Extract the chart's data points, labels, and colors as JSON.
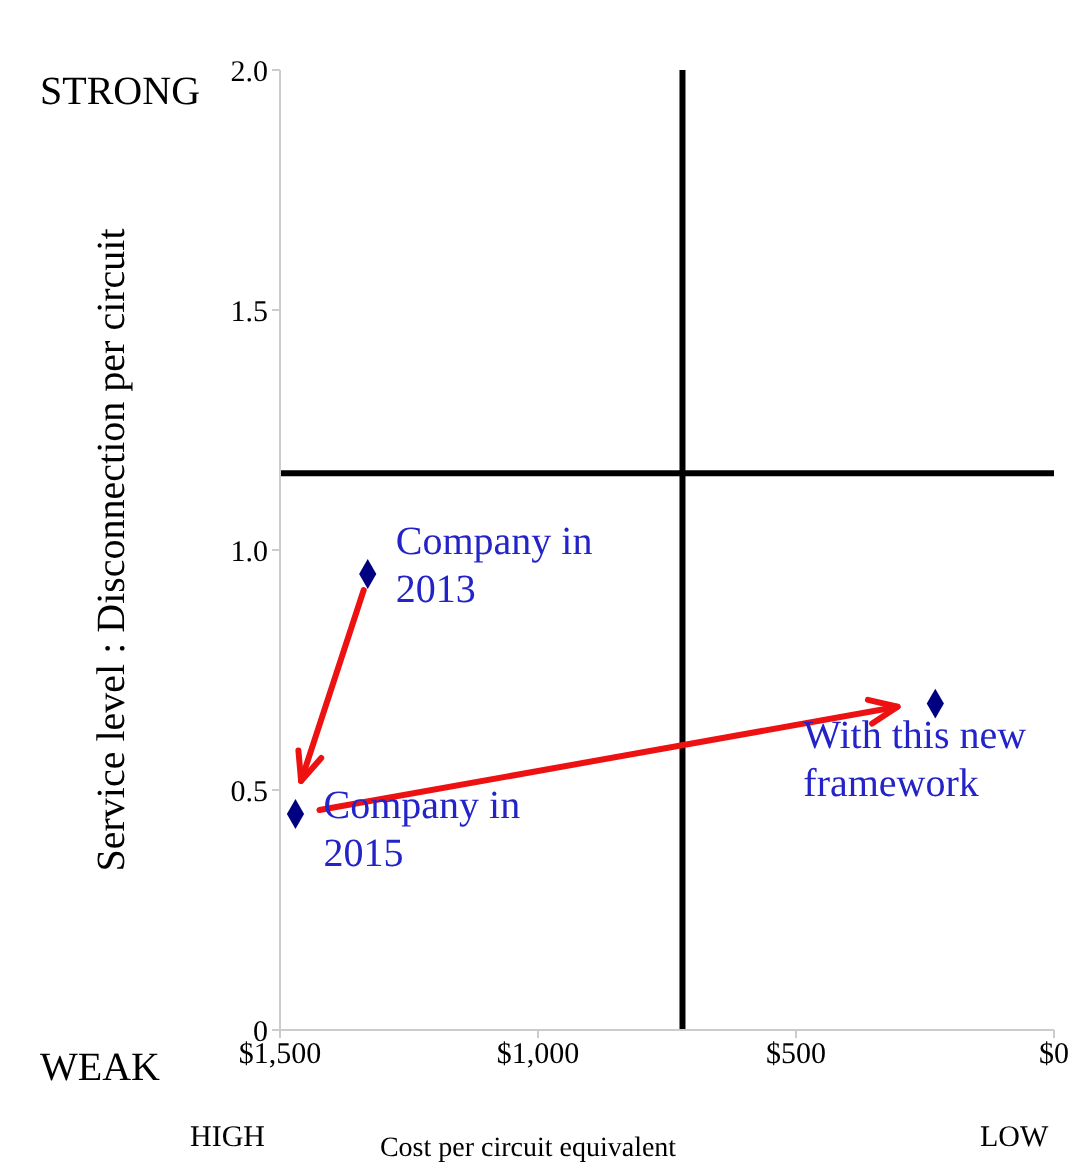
{
  "chart_data": {
    "type": "scatter",
    "xlabel": "Cost per circuit equivalent",
    "ylabel": "Service level : Disconnection per circuit",
    "x": [
      1330,
      1470,
      230
    ],
    "series": [
      {
        "color": "#000080",
        "values": [
          0.95,
          0.45,
          0.68
        ]
      }
    ],
    "marker": "diamond",
    "xlim": [
      1500,
      0
    ],
    "xticks": [
      {
        "value": 1500,
        "label": "$1,500"
      },
      {
        "value": 1000,
        "label": "$1,000"
      },
      {
        "value": 500,
        "label": "$500"
      },
      {
        "value": 0,
        "label": "$0"
      }
    ],
    "ylim": [
      0,
      2
    ],
    "yticks": [
      0,
      {
        "value": 0.5,
        "label": "0.5"
      },
      {
        "value": 1,
        "label": "1.0"
      },
      {
        "value": 1.5,
        "label": "1.5"
      },
      {
        "value": 2,
        "label": "2.0"
      }
    ],
    "ref_lines": [
      {
        "axis": "x",
        "value": 720,
        "color": "#000000"
      },
      {
        "axis": "y",
        "value": 1.16,
        "color": "#000000"
      }
    ],
    "annotations": [
      {
        "text": "Company in 2013",
        "x": 1330,
        "y": 0.95
      },
      {
        "text": "Company in 2015",
        "x": 1470,
        "y": 0.45
      },
      {
        "text": "With this new framework",
        "x": 230,
        "y": 0.68
      },
      "STRONG",
      "WEAK",
      "HIGH",
      "LOW"
    ]
  }
}
